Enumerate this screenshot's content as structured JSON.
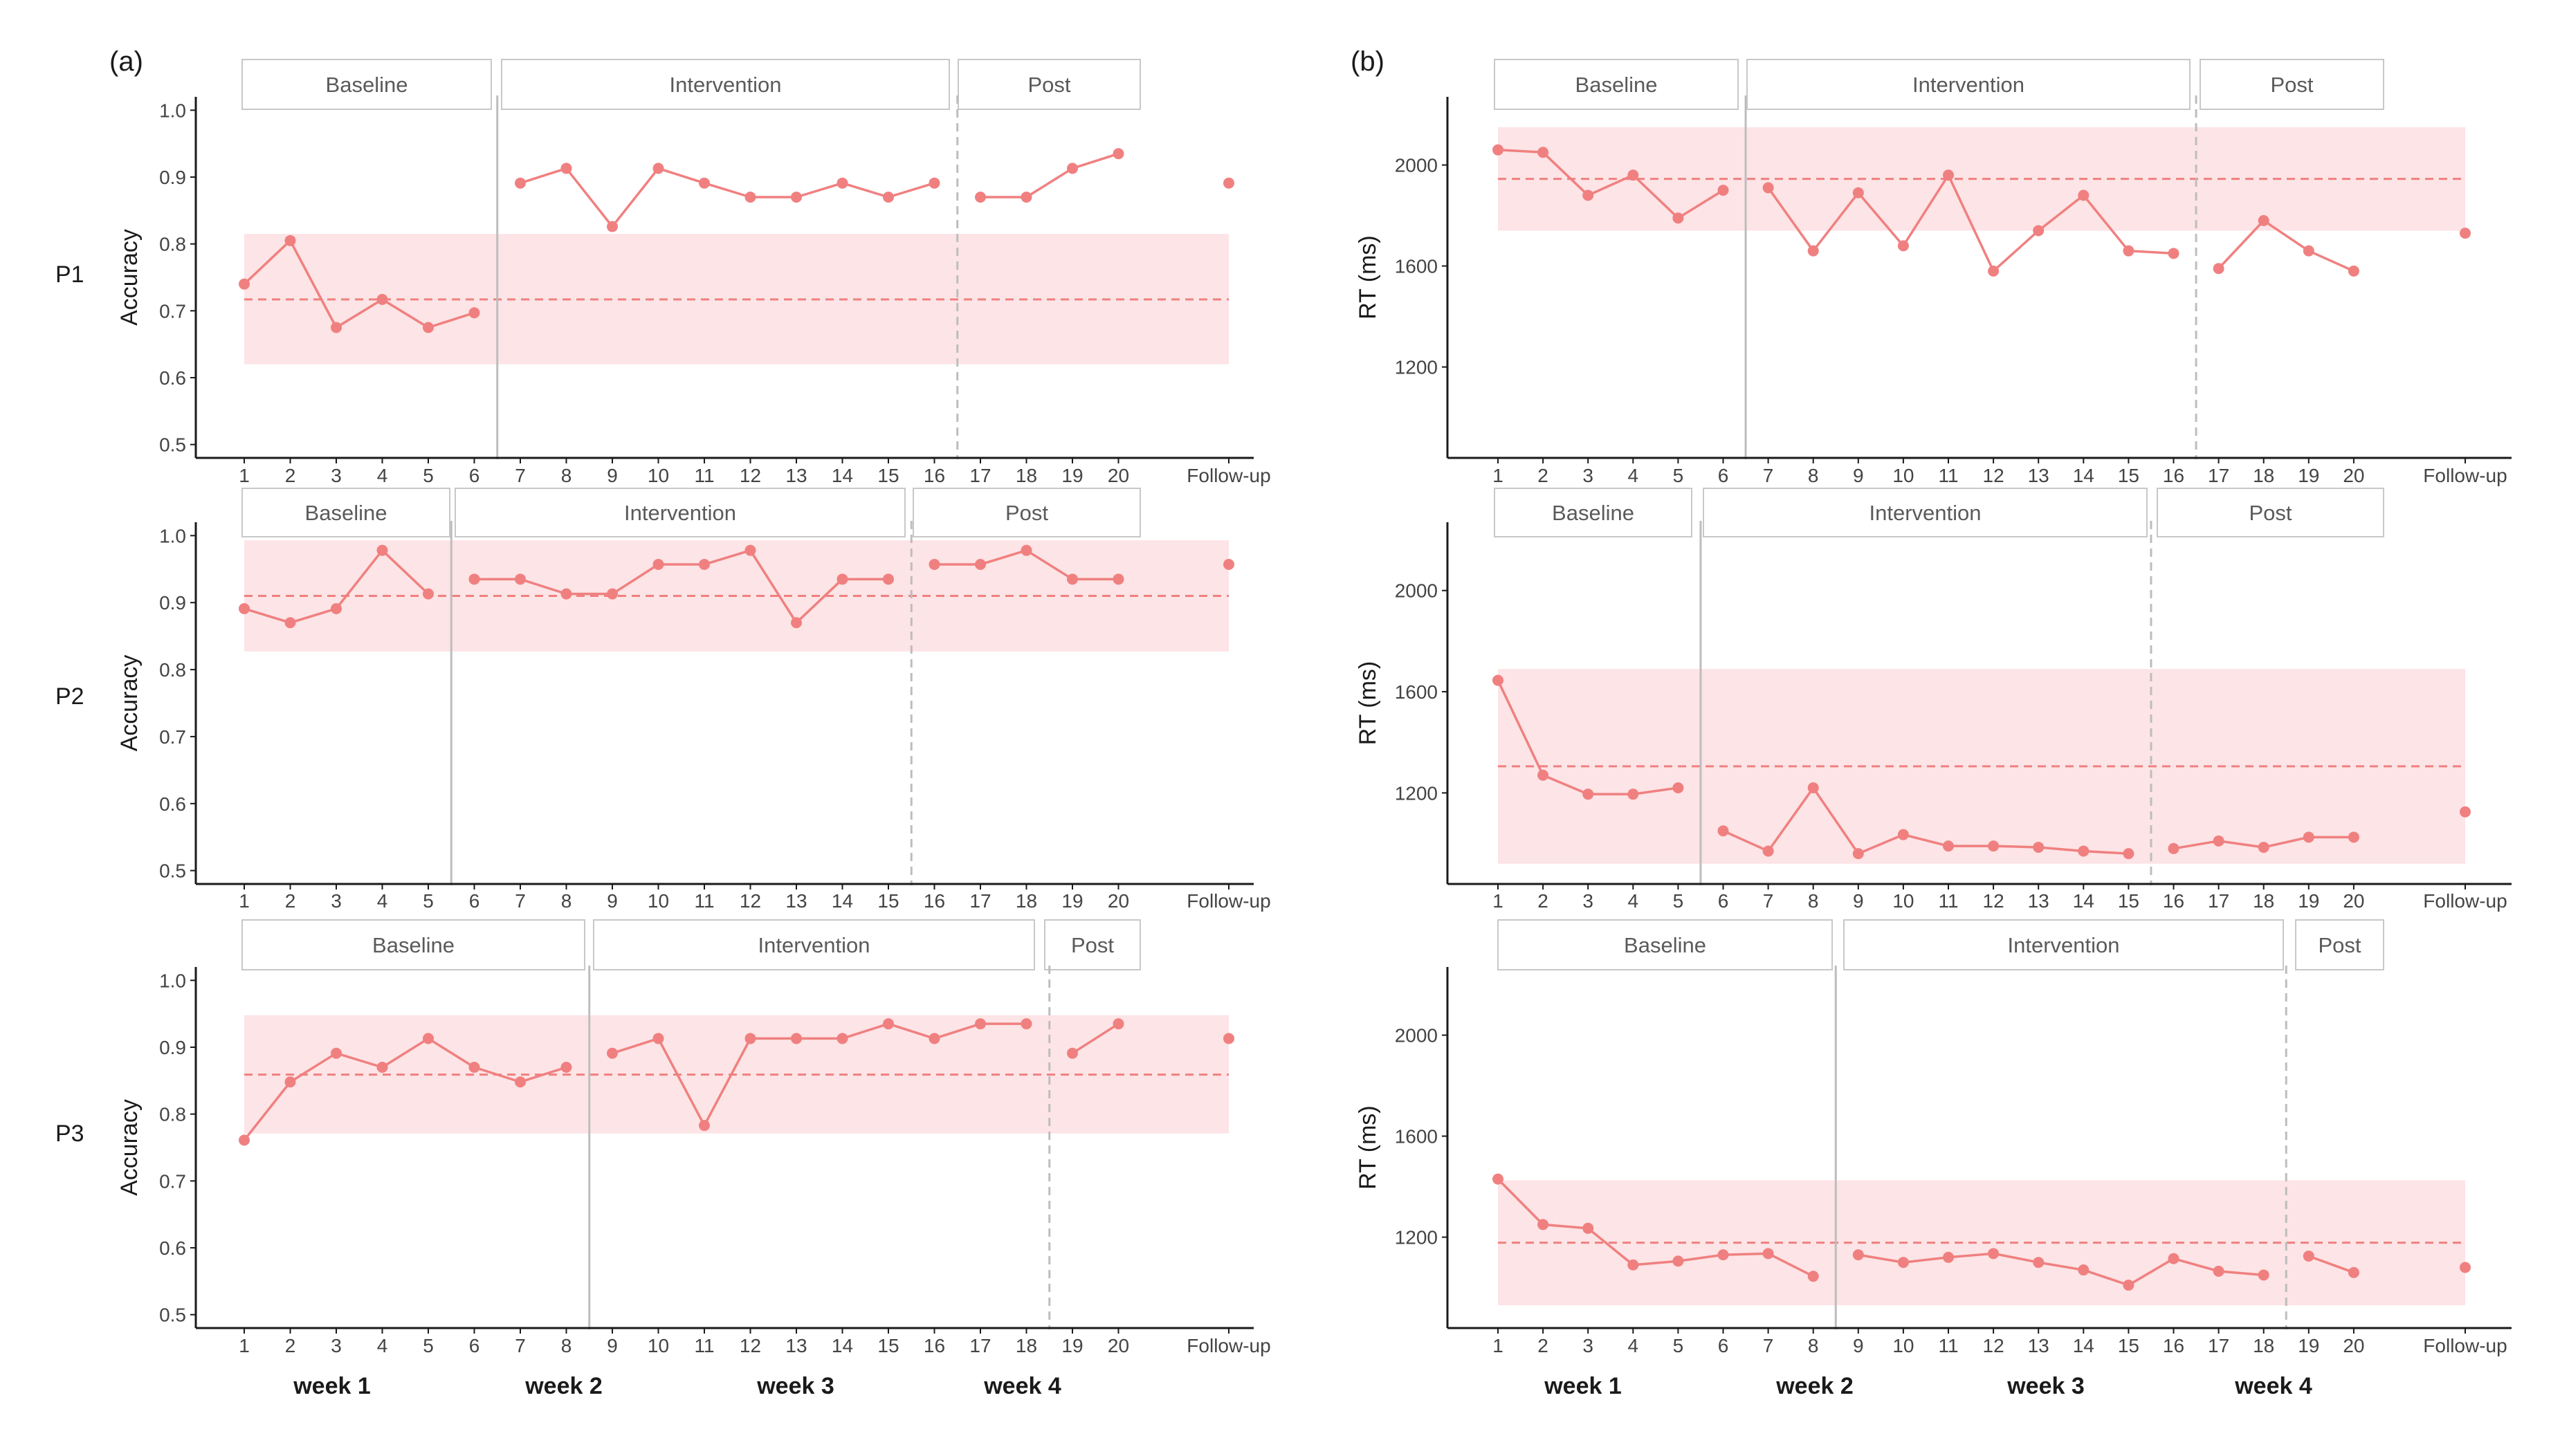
{
  "panel_labels": {
    "a": "(a)",
    "b": "(b)"
  },
  "participants": [
    "P1",
    "P2",
    "P3"
  ],
  "weeks": [
    "week 1",
    "week 2",
    "week 3",
    "week 4"
  ],
  "chart_data": [
    {
      "id": "acc-p1",
      "type": "line",
      "column": "a",
      "row": 0,
      "ylabel": "Accuracy",
      "ylim": [
        0.48,
        1.02
      ],
      "yticks": [
        "0.5",
        "0.6",
        "0.7",
        "0.8",
        "0.9",
        "1.0"
      ],
      "x": [
        "1",
        "2",
        "3",
        "4",
        "5",
        "6",
        "7",
        "8",
        "9",
        "10",
        "11",
        "12",
        "13",
        "14",
        "15",
        "16",
        "17",
        "18",
        "19",
        "20",
        "Follow-up"
      ],
      "values": [
        0.74,
        0.805,
        0.675,
        0.717,
        0.675,
        0.697,
        0.891,
        0.913,
        0.826,
        0.913,
        0.891,
        0.87,
        0.87,
        0.891,
        0.87,
        0.891,
        0.87,
        0.87,
        0.913,
        0.935,
        0.891
      ],
      "band": [
        0.62,
        0.815
      ],
      "mean": 0.717,
      "phases": [
        {
          "label": "Baseline",
          "start": 1,
          "end": 6
        },
        {
          "label": "Intervention",
          "start": 7,
          "end": 16
        },
        {
          "label": "Post",
          "start": 17,
          "end": 20
        }
      ],
      "boundaries": [
        {
          "after": 6,
          "style": "solid"
        },
        {
          "after": 16,
          "style": "dashed"
        }
      ]
    },
    {
      "id": "acc-p2",
      "type": "line",
      "column": "a",
      "row": 1,
      "ylabel": "Accuracy",
      "ylim": [
        0.48,
        1.02
      ],
      "yticks": [
        "0.5",
        "0.6",
        "0.7",
        "0.8",
        "0.9",
        "1.0"
      ],
      "x": [
        "1",
        "2",
        "3",
        "4",
        "5",
        "6",
        "7",
        "8",
        "9",
        "10",
        "11",
        "12",
        "13",
        "14",
        "15",
        "16",
        "17",
        "18",
        "19",
        "20",
        "Follow-up"
      ],
      "values": [
        0.891,
        0.87,
        0.891,
        0.978,
        0.913,
        0.935,
        0.935,
        0.913,
        0.913,
        0.957,
        0.957,
        0.978,
        0.87,
        0.935,
        0.935,
        0.957,
        0.957,
        0.978,
        0.935,
        0.935,
        0.957
      ],
      "band": [
        0.827,
        0.993
      ],
      "mean": 0.91,
      "phases": [
        {
          "label": "Baseline",
          "start": 1,
          "end": 5
        },
        {
          "label": "Intervention",
          "start": 6,
          "end": 15
        },
        {
          "label": "Post",
          "start": 16,
          "end": 20
        }
      ],
      "boundaries": [
        {
          "after": 5,
          "style": "solid"
        },
        {
          "after": 15,
          "style": "dashed"
        }
      ]
    },
    {
      "id": "acc-p3",
      "type": "line",
      "column": "a",
      "row": 2,
      "ylabel": "Accuracy",
      "ylim": [
        0.48,
        1.02
      ],
      "yticks": [
        "0.5",
        "0.6",
        "0.7",
        "0.8",
        "0.9",
        "1.0"
      ],
      "x": [
        "1",
        "2",
        "3",
        "4",
        "5",
        "6",
        "7",
        "8",
        "9",
        "10",
        "11",
        "12",
        "13",
        "14",
        "15",
        "16",
        "17",
        "18",
        "19",
        "20",
        "Follow-up"
      ],
      "values": [
        0.761,
        0.848,
        0.891,
        0.87,
        0.913,
        0.87,
        0.848,
        0.87,
        0.891,
        0.913,
        0.783,
        0.913,
        0.913,
        0.913,
        0.935,
        0.913,
        0.935,
        0.935,
        0.891,
        0.935,
        0.913
      ],
      "band": [
        0.771,
        0.948
      ],
      "mean": 0.859,
      "phases": [
        {
          "label": "Baseline",
          "start": 1,
          "end": 8
        },
        {
          "label": "Intervention",
          "start": 9,
          "end": 18
        },
        {
          "label": "Post",
          "start": 19,
          "end": 20
        }
      ],
      "boundaries": [
        {
          "after": 8,
          "style": "solid"
        },
        {
          "after": 18,
          "style": "dashed"
        }
      ]
    },
    {
      "id": "rt-p1",
      "type": "line",
      "column": "b",
      "row": 0,
      "ylabel": "RT (ms)",
      "ylim": [
        840,
        2270
      ],
      "yticks": [
        "1200",
        "1600",
        "2000"
      ],
      "x": [
        "1",
        "2",
        "3",
        "4",
        "5",
        "6",
        "7",
        "8",
        "9",
        "10",
        "11",
        "12",
        "13",
        "14",
        "15",
        "16",
        "17",
        "18",
        "19",
        "20",
        "Follow-up"
      ],
      "values": [
        2060,
        2050,
        1880,
        1960,
        1790,
        1900,
        1910,
        1660,
        1890,
        1680,
        1960,
        1580,
        1740,
        1880,
        1660,
        1650,
        1590,
        1780,
        1660,
        1580,
        1730
      ],
      "band": [
        1740,
        2150
      ],
      "mean": 1945,
      "phases": [
        {
          "label": "Baseline",
          "start": 1,
          "end": 6
        },
        {
          "label": "Intervention",
          "start": 7,
          "end": 16
        },
        {
          "label": "Post",
          "start": 17,
          "end": 20
        }
      ],
      "boundaries": [
        {
          "after": 6,
          "style": "solid"
        },
        {
          "after": 16,
          "style": "dashed"
        }
      ]
    },
    {
      "id": "rt-p2",
      "type": "line",
      "column": "b",
      "row": 1,
      "ylabel": "RT (ms)",
      "ylim": [
        840,
        2270
      ],
      "yticks": [
        "1200",
        "1600",
        "2000"
      ],
      "x": [
        "1",
        "2",
        "3",
        "4",
        "5",
        "6",
        "7",
        "8",
        "9",
        "10",
        "11",
        "12",
        "13",
        "14",
        "15",
        "16",
        "17",
        "18",
        "19",
        "20",
        "Follow-up"
      ],
      "values": [
        1645,
        1270,
        1195,
        1195,
        1220,
        1050,
        970,
        1220,
        960,
        1035,
        990,
        990,
        985,
        970,
        960,
        980,
        1010,
        985,
        1025,
        1025,
        1125
      ],
      "band": [
        920,
        1690
      ],
      "mean": 1305,
      "phases": [
        {
          "label": "Baseline",
          "start": 1,
          "end": 5
        },
        {
          "label": "Intervention",
          "start": 6,
          "end": 15
        },
        {
          "label": "Post",
          "start": 16,
          "end": 20
        }
      ],
      "boundaries": [
        {
          "after": 5,
          "style": "solid"
        },
        {
          "after": 15,
          "style": "dashed"
        }
      ]
    },
    {
      "id": "rt-p3",
      "type": "line",
      "column": "b",
      "row": 2,
      "ylabel": "RT (ms)",
      "ylim": [
        840,
        2270
      ],
      "yticks": [
        "1200",
        "1600",
        "2000"
      ],
      "x": [
        "1",
        "2",
        "3",
        "4",
        "5",
        "6",
        "7",
        "8",
        "9",
        "10",
        "11",
        "12",
        "13",
        "14",
        "15",
        "16",
        "17",
        "18",
        "19",
        "20",
        "Follow-up"
      ],
      "values": [
        1430,
        1250,
        1235,
        1090,
        1105,
        1130,
        1135,
        1045,
        1130,
        1100,
        1120,
        1135,
        1100,
        1070,
        1010,
        1115,
        1065,
        1050,
        1125,
        1060,
        1080
      ],
      "band": [
        930,
        1425
      ],
      "mean": 1178,
      "phases": [
        {
          "label": "Baseline",
          "start": 1,
          "end": 8
        },
        {
          "label": "Intervention",
          "start": 9,
          "end": 18
        },
        {
          "label": "Post",
          "start": 19,
          "end": 20
        }
      ],
      "boundaries": [
        {
          "after": 8,
          "style": "solid"
        },
        {
          "after": 18,
          "style": "dashed"
        }
      ]
    }
  ],
  "colors": {
    "line": "#f08080",
    "band": "#fde4e6",
    "axis": "#1a1a1a",
    "boundary": "#bdbdbd",
    "strip_border": "#c8c8c8",
    "strip_text": "#5a5a5a",
    "tick_text": "#444444"
  }
}
